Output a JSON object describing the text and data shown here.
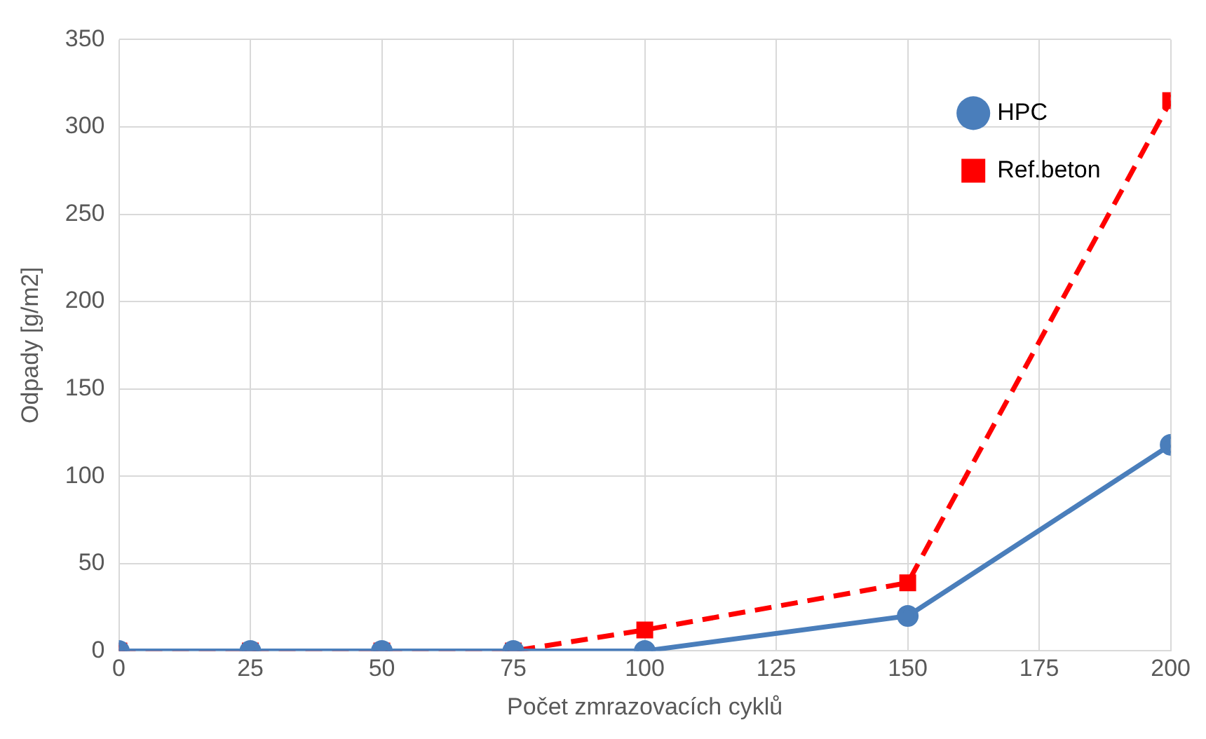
{
  "chart_data": {
    "type": "line",
    "xlabel": "Počet zmrazovacích cyklů",
    "ylabel": "Odpady [g/m2]",
    "xlim": [
      0,
      200
    ],
    "xticks": [
      0,
      25,
      50,
      75,
      100,
      125,
      150,
      175,
      200
    ],
    "ylim": [
      0,
      350
    ],
    "yticks": [
      0,
      50,
      100,
      150,
      200,
      250,
      300,
      350
    ],
    "grid": true,
    "legend": "top right",
    "series": [
      {
        "name": "HPC",
        "color": "#4a7ebb",
        "x": [
          0,
          25,
          50,
          75,
          100,
          150,
          200
        ],
        "values": [
          0,
          0,
          0,
          0,
          0,
          20,
          118
        ],
        "marker": "circle",
        "line_style": "solid"
      },
      {
        "name": "Ref.beton",
        "color": "#ff0000",
        "x": [
          0,
          25,
          50,
          75,
          100,
          150,
          200
        ],
        "values": [
          0,
          0,
          0,
          0,
          12,
          39,
          315
        ],
        "marker": "square",
        "line_style": "dashed"
      }
    ]
  }
}
